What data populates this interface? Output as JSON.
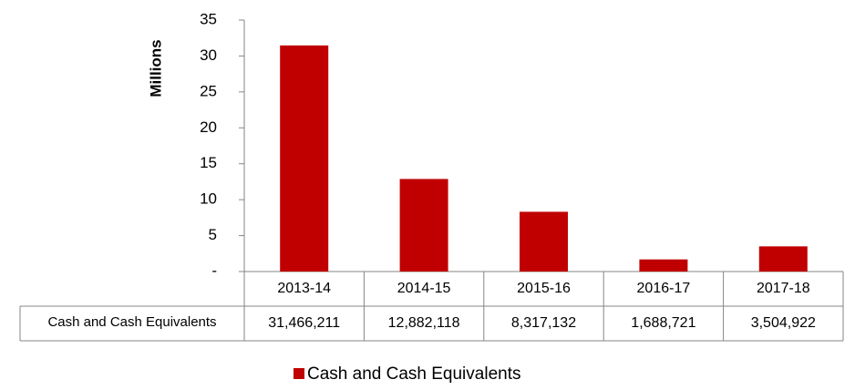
{
  "chart_data": {
    "type": "bar",
    "y_label": "Millions",
    "categories": [
      "2013-14",
      "2014-15",
      "2015-16",
      "2016-17",
      "2017-18"
    ],
    "series": [
      {
        "name": "Cash and Cash Equivalents",
        "color": "#c00000",
        "values": [
          31.466211,
          12.882118,
          8.317132,
          1.688721,
          3.504922
        ],
        "value_labels": [
          "31,466,211",
          "12,882,118",
          "8,317,132",
          "1,688,721",
          "3,504,922"
        ]
      }
    ],
    "ylim": [
      0,
      35
    ],
    "yticks": [
      {
        "value": 0,
        "label": "-"
      },
      5,
      10,
      15,
      20,
      25,
      30,
      35
    ],
    "legend": "bottom"
  }
}
